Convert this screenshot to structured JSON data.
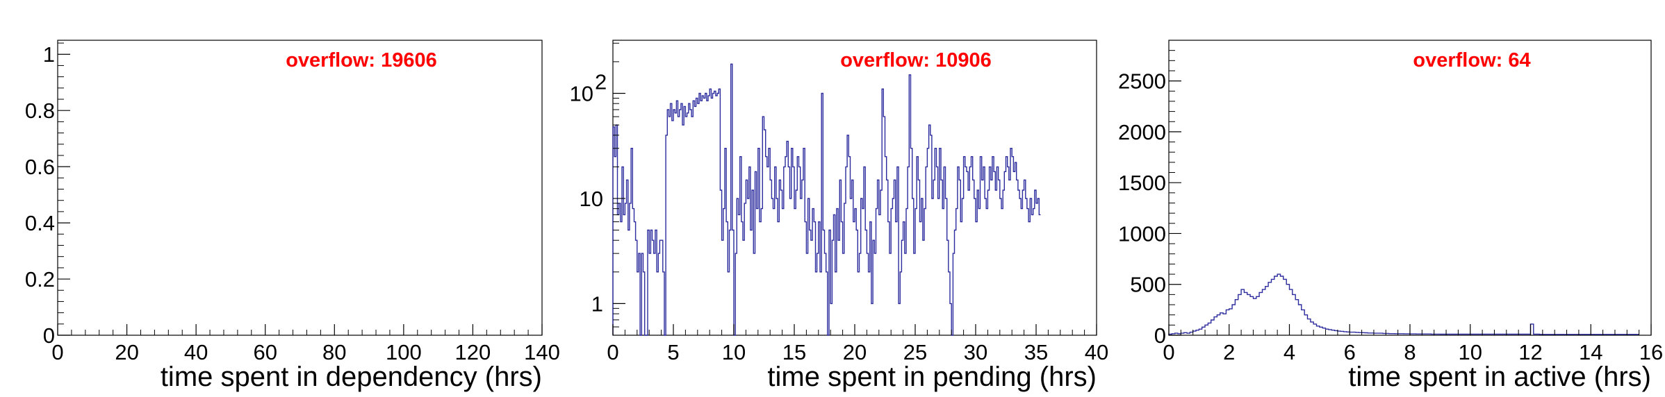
{
  "chart_data": [
    {
      "type": "histogram",
      "xlabel": "time spent in dependency (hrs)",
      "ylabel": "",
      "annotation": "overflow: 19606",
      "xlim": [
        0,
        140
      ],
      "ylim": [
        0,
        1.05
      ],
      "log_y": false,
      "x_ticks": [
        0,
        20,
        40,
        60,
        80,
        100,
        120,
        140
      ],
      "y_ticks": [
        0,
        0.2,
        0.4,
        0.6,
        0.8,
        1
      ],
      "x_tick_labels": [
        "0",
        "20",
        "40",
        "60",
        "80",
        "100",
        "120",
        "140"
      ],
      "y_tick_labels": [
        "0",
        "0.2",
        "0.4",
        "0.6",
        "0.8",
        "1"
      ],
      "bin_width": 1,
      "values": [],
      "line_color": "#2b2b9e"
    },
    {
      "type": "histogram",
      "xlabel": "time spent in pending (hrs)",
      "ylabel": "",
      "annotation": "overflow: 10906",
      "xlim": [
        0,
        40
      ],
      "ylim": [
        0.5,
        320
      ],
      "log_y": true,
      "x_ticks": [
        0,
        5,
        10,
        15,
        20,
        25,
        30,
        35,
        40
      ],
      "y_ticks": [
        1,
        10,
        100
      ],
      "x_tick_labels": [
        "0",
        "5",
        "10",
        "15",
        "20",
        "25",
        "30",
        "35",
        "40"
      ],
      "y_tick_labels": [
        "1",
        "10",
        "10^2"
      ],
      "bin_width": 0.125,
      "values": [
        48,
        25,
        50,
        7,
        9,
        6,
        20,
        7,
        9,
        15,
        5,
        9,
        30,
        8,
        6,
        4,
        2,
        3,
        0,
        3,
        2,
        0,
        0,
        5,
        3,
        5,
        4,
        3,
        5,
        2,
        3,
        4,
        4,
        2,
        0,
        40,
        70,
        60,
        80,
        55,
        70,
        65,
        85,
        60,
        70,
        80,
        50,
        75,
        60,
        65,
        80,
        70,
        60,
        85,
        75,
        90,
        80,
        100,
        85,
        95,
        90,
        100,
        85,
        95,
        110,
        90,
        100,
        105,
        95,
        100,
        110,
        12,
        4,
        8,
        30,
        6,
        2,
        5,
        190,
        5,
        0,
        3,
        10,
        7,
        25,
        6,
        4,
        9,
        15,
        10,
        20,
        5,
        12,
        3,
        18,
        8,
        30,
        6,
        8,
        60,
        45,
        25,
        20,
        30,
        15,
        10,
        8,
        20,
        10,
        6,
        15,
        12,
        8,
        20,
        25,
        35,
        20,
        10,
        30,
        20,
        8,
        12,
        25,
        20,
        10,
        15,
        30,
        6,
        3,
        10,
        5,
        4,
        8,
        6,
        2,
        3,
        6,
        2,
        100,
        5,
        3,
        2,
        0,
        5,
        1,
        4,
        7,
        2,
        8,
        4,
        15,
        6,
        3,
        9,
        20,
        40,
        25,
        10,
        15,
        6,
        8,
        5,
        2,
        3,
        10,
        8,
        20,
        5,
        3,
        2,
        6,
        1,
        4,
        3,
        8,
        15,
        7,
        12,
        110,
        60,
        25,
        15,
        6,
        3,
        8,
        10,
        15,
        6,
        20,
        1,
        2,
        4,
        6,
        3,
        8,
        20,
        150,
        30,
        10,
        3,
        8,
        25,
        15,
        6,
        10,
        4,
        8,
        20,
        30,
        50,
        40,
        10,
        15,
        30,
        20,
        10,
        30,
        15,
        8,
        20,
        10,
        4,
        2,
        1,
        0,
        3,
        5,
        8,
        20,
        15,
        6,
        10,
        25,
        20,
        18,
        12,
        20,
        25,
        15,
        10,
        6,
        12,
        8,
        25,
        15,
        20,
        10,
        8,
        12,
        20,
        15,
        25,
        18,
        12,
        20,
        15,
        10,
        8,
        12,
        18,
        25,
        20,
        15,
        30,
        25,
        18,
        22,
        15,
        12,
        10,
        8,
        12,
        15,
        10,
        8,
        6,
        10,
        7,
        8,
        12,
        9,
        10,
        7
      ],
      "line_color": "#2b2b9e"
    },
    {
      "type": "histogram",
      "xlabel": "time spent in active (hrs)",
      "ylabel": "",
      "annotation": "overflow: 64",
      "xlim": [
        0,
        16
      ],
      "ylim": [
        0,
        2900
      ],
      "log_y": false,
      "x_ticks": [
        0,
        2,
        4,
        6,
        8,
        10,
        12,
        14,
        16
      ],
      "y_ticks": [
        0,
        500,
        1000,
        1500,
        2000,
        2500
      ],
      "x_tick_labels": [
        "0",
        "2",
        "4",
        "6",
        "8",
        "10",
        "12",
        "14",
        "16"
      ],
      "y_tick_labels": [
        "0",
        "500",
        "1000",
        "1500",
        "2000",
        "2500"
      ],
      "bin_width": 0.1,
      "values": [
        10,
        15,
        20,
        15,
        20,
        25,
        20,
        30,
        40,
        50,
        60,
        80,
        100,
        120,
        150,
        180,
        200,
        220,
        210,
        250,
        260,
        300,
        350,
        400,
        450,
        420,
        400,
        380,
        360,
        380,
        420,
        450,
        480,
        520,
        550,
        580,
        600,
        580,
        550,
        500,
        450,
        400,
        350,
        300,
        250,
        200,
        160,
        130,
        110,
        90,
        80,
        70,
        60,
        55,
        50,
        45,
        40,
        38,
        35,
        32,
        30,
        30,
        28,
        26,
        25,
        24,
        22,
        22,
        20,
        20,
        20,
        18,
        18,
        16,
        16,
        15,
        15,
        15,
        14,
        14,
        13,
        13,
        12,
        12,
        12,
        12,
        12,
        11,
        11,
        11,
        10,
        10,
        10,
        10,
        10,
        10,
        10,
        10,
        10,
        10,
        10,
        10,
        10,
        10,
        10,
        10,
        10,
        10,
        10,
        10,
        10,
        10,
        10,
        10,
        10,
        10,
        10,
        10,
        10,
        10,
        110,
        10,
        10,
        8,
        8,
        8,
        8,
        8,
        8,
        8,
        8,
        8,
        8,
        8,
        8,
        8,
        8,
        8,
        8,
        8,
        8,
        8,
        8,
        8,
        8,
        8,
        8,
        8,
        8,
        8,
        8,
        8,
        8,
        8,
        8,
        8
      ],
      "line_color": "#2b2b9e"
    }
  ]
}
